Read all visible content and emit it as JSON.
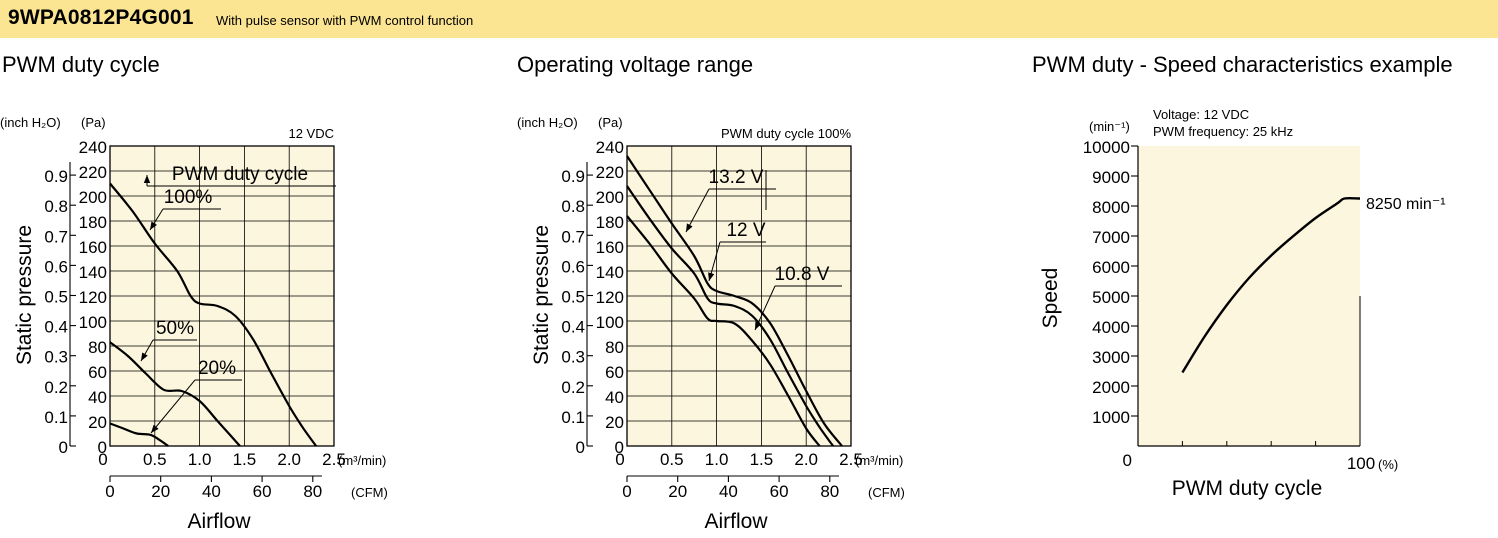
{
  "header": {
    "model": "9WPA0812P4G001",
    "description": "With pulse sensor with PWM control function"
  },
  "colors": {
    "header_bg": "#fbe592",
    "plot_bg": "#fbf6dd",
    "curve": "#000000"
  },
  "chart_data": [
    {
      "type": "line",
      "title": "PWM duty cycle",
      "condition": "12 VDC",
      "xlabel": "Airflow",
      "ylabel": "Static pressure",
      "x_unit": "(m³/min)",
      "x_unit_secondary": "(CFM)",
      "y_unit": "(Pa)",
      "y_unit_secondary": "(inch H₂O)",
      "xlim": [
        0,
        2.5
      ],
      "ylim": [
        0,
        240
      ],
      "x_ticks": [
        "0",
        "0.5",
        "1.0",
        "1.5",
        "2.0",
        "2.5"
      ],
      "y_ticks": [
        "0",
        "20",
        "40",
        "60",
        "80",
        "100",
        "120",
        "140",
        "160",
        "180",
        "200",
        "220",
        "240"
      ],
      "x_ticks_secondary": [
        "0",
        "20",
        "40",
        "60",
        "80"
      ],
      "y_ticks_secondary": [
        "0",
        "0.1",
        "0.2",
        "0.3",
        "0.4",
        "0.5",
        "0.6",
        "0.7",
        "0.8",
        "0.9"
      ],
      "legend_title": "PWM duty cycle",
      "grid": true,
      "series": [
        {
          "name": "100%",
          "x": [
            0,
            0.25,
            0.5,
            0.75,
            0.9,
            1.0,
            1.2,
            1.4,
            1.6,
            1.8,
            2.0,
            2.15,
            2.3
          ],
          "y": [
            210,
            188,
            162,
            140,
            120,
            114,
            112,
            104,
            85,
            58,
            32,
            15,
            0
          ]
        },
        {
          "name": "50%",
          "x": [
            0,
            0.2,
            0.4,
            0.6,
            0.8,
            1.0,
            1.2,
            1.35,
            1.45
          ],
          "y": [
            83,
            72,
            58,
            45,
            44,
            36,
            20,
            8,
            0
          ]
        },
        {
          "name": "20%",
          "x": [
            0,
            0.15,
            0.3,
            0.45,
            0.55,
            0.65
          ],
          "y": [
            18,
            14,
            10,
            9,
            5,
            0
          ]
        }
      ]
    },
    {
      "type": "line",
      "title": "Operating voltage range",
      "condition": "PWM duty cycle 100%",
      "xlabel": "Airflow",
      "ylabel": "Static pressure",
      "x_unit": "(m³/min)",
      "x_unit_secondary": "(CFM)",
      "y_unit": "(Pa)",
      "y_unit_secondary": "(inch H₂O)",
      "xlim": [
        0,
        2.5
      ],
      "ylim": [
        0,
        240
      ],
      "x_ticks": [
        "0",
        "0.5",
        "1.0",
        "1.5",
        "2.0",
        "2.5"
      ],
      "y_ticks": [
        "0",
        "20",
        "40",
        "60",
        "80",
        "100",
        "120",
        "140",
        "160",
        "180",
        "200",
        "220",
        "240"
      ],
      "x_ticks_secondary": [
        "0",
        "20",
        "40",
        "60",
        "80"
      ],
      "y_ticks_secondary": [
        "0",
        "0.1",
        "0.2",
        "0.3",
        "0.4",
        "0.5",
        "0.6",
        "0.7",
        "0.8",
        "0.9"
      ],
      "grid": true,
      "series": [
        {
          "name": "13.2 V",
          "x": [
            0,
            0.25,
            0.5,
            0.75,
            0.9,
            1.0,
            1.2,
            1.4,
            1.6,
            1.8,
            2.0,
            2.2,
            2.4
          ],
          "y": [
            232,
            205,
            178,
            152,
            130,
            124,
            120,
            114,
            98,
            72,
            44,
            18,
            0
          ]
        },
        {
          "name": "12 V",
          "x": [
            0,
            0.25,
            0.5,
            0.75,
            0.9,
            1.0,
            1.2,
            1.4,
            1.6,
            1.8,
            2.0,
            2.15,
            2.3
          ],
          "y": [
            208,
            182,
            158,
            138,
            118,
            114,
            112,
            104,
            85,
            58,
            32,
            15,
            0
          ]
        },
        {
          "name": "10.8 V",
          "x": [
            0,
            0.25,
            0.5,
            0.75,
            0.9,
            1.0,
            1.2,
            1.4,
            1.6,
            1.8,
            2.0,
            2.15
          ],
          "y": [
            184,
            162,
            138,
            118,
            102,
            100,
            98,
            84,
            65,
            40,
            14,
            0
          ]
        }
      ]
    },
    {
      "type": "line",
      "title": "PWM duty - Speed characteristics example",
      "condition_lines": [
        "Voltage: 12 VDC",
        "PWM frequency: 25 kHz"
      ],
      "xlabel": "PWM duty cycle",
      "ylabel": "Speed",
      "x_unit": "(%)",
      "y_unit": "(min⁻¹)",
      "xlim": [
        0,
        100
      ],
      "ylim": [
        0,
        10000
      ],
      "x_ticks": [
        "0",
        "100"
      ],
      "y_ticks": [
        "1000",
        "2000",
        "3000",
        "4000",
        "5000",
        "6000",
        "7000",
        "8000",
        "9000",
        "10000"
      ],
      "annotation": "8250 min⁻¹",
      "series": [
        {
          "x": [
            20,
            30,
            40,
            50,
            60,
            70,
            80,
            90,
            93,
            100
          ],
          "y": [
            2450,
            3650,
            4700,
            5600,
            6350,
            7000,
            7600,
            8100,
            8250,
            8250
          ]
        }
      ]
    }
  ]
}
